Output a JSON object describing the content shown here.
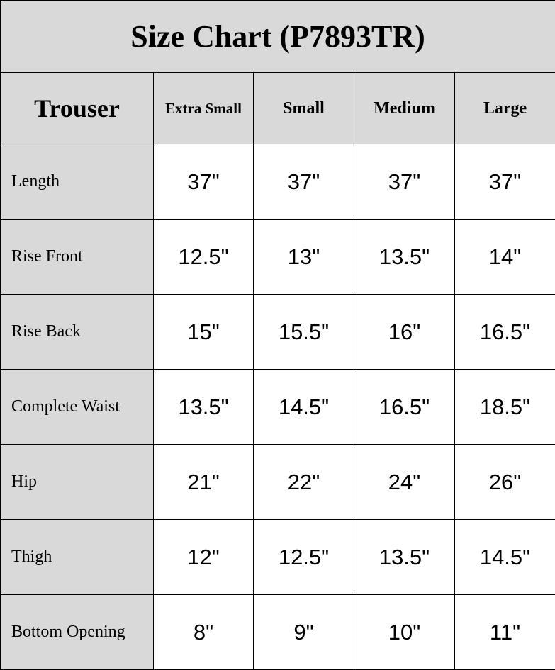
{
  "title": "Size Chart (P7893TR)",
  "header": {
    "category": "Trouser",
    "sizes": [
      "Extra Small",
      "Small",
      "Medium",
      "Large"
    ]
  },
  "rows": [
    {
      "label": "Length",
      "values": [
        "37\"",
        "37\"",
        "37\"",
        "37\""
      ]
    },
    {
      "label": "Rise Front",
      "values": [
        "12.5\"",
        "13\"",
        "13.5\"",
        "14\""
      ]
    },
    {
      "label": "Rise Back",
      "values": [
        "15\"",
        "15.5\"",
        "16\"",
        "16.5\""
      ]
    },
    {
      "label": "Complete Waist",
      "values": [
        "13.5\"",
        "14.5\"",
        "16.5\"",
        "18.5\""
      ]
    },
    {
      "label": "Hip",
      "values": [
        "21\"",
        "22\"",
        "24\"",
        "26\""
      ]
    },
    {
      "label": "Thigh",
      "values": [
        "12\"",
        "12.5\"",
        "13.5\"",
        "14.5\""
      ]
    },
    {
      "label": "Bottom Opening",
      "values": [
        "8\"",
        "9\"",
        "10\"",
        "11\""
      ]
    }
  ],
  "colors": {
    "header_bg": "#d9d9d9",
    "border": "#000000"
  }
}
